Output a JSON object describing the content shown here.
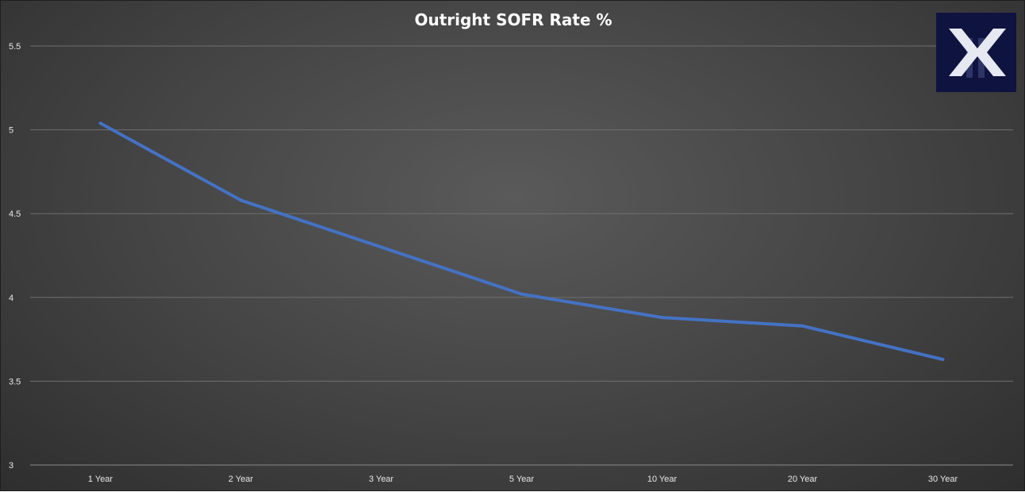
{
  "chart_data": {
    "type": "line",
    "title": "Outright SOFR Rate %",
    "categories": [
      "1 Year",
      "2 Year",
      "3 Year",
      "5 Year",
      "10 Year",
      "20 Year",
      "30 Year"
    ],
    "series": [
      {
        "values": [
          5.04,
          4.58,
          4.3,
          4.02,
          3.88,
          3.83,
          3.63
        ]
      }
    ],
    "yticks": [
      "3",
      "3.5",
      "4",
      "4.5",
      "5",
      "5.5"
    ],
    "ylim": [
      3,
      5.5
    ],
    "grid": true,
    "line_color": "#4472c4"
  }
}
